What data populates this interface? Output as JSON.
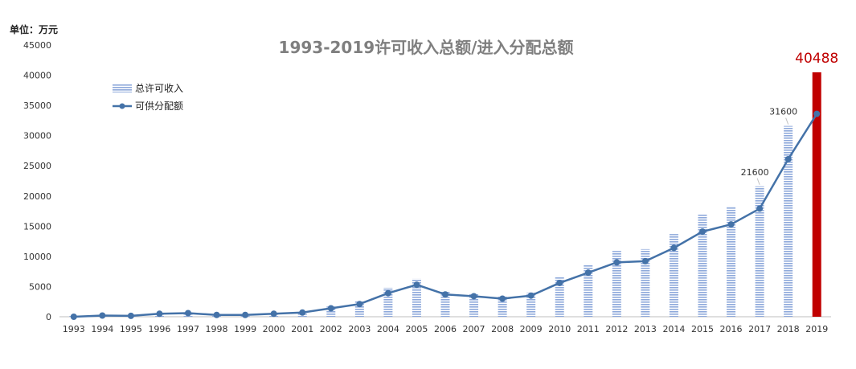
{
  "chart_data": {
    "type": "bar",
    "title": "1993-2019许可收入总额/进入分配总额",
    "unit_label": "单位：万元",
    "xlabel": "",
    "ylabel": "",
    "ylim": [
      0,
      45000
    ],
    "yticks": [
      0,
      5000,
      10000,
      15000,
      20000,
      25000,
      30000,
      35000,
      40000,
      45000
    ],
    "grid": false,
    "legend_position": "top-left",
    "categories": [
      "1993",
      "1994",
      "1995",
      "1996",
      "1997",
      "1998",
      "1999",
      "2000",
      "2001",
      "2002",
      "2003",
      "2004",
      "2005",
      "2006",
      "2007",
      "2008",
      "2009",
      "2010",
      "2011",
      "2012",
      "2013",
      "2014",
      "2015",
      "2016",
      "2017",
      "2018",
      "2019"
    ],
    "series": [
      {
        "name": "总许可收入",
        "kind": "bar",
        "color": "#8EA9DB",
        "values": [
          150,
          300,
          250,
          600,
          700,
          400,
          400,
          600,
          800,
          1700,
          2600,
          4800,
          6300,
          4300,
          3900,
          3400,
          4000,
          6700,
          8700,
          10900,
          11200,
          13700,
          17000,
          18300,
          21600,
          31600,
          40488
        ],
        "highlight": {
          "index": 26,
          "color": "#C00000"
        }
      },
      {
        "name": "可供分配额",
        "kind": "line",
        "color": "#4472A8",
        "values": [
          0,
          200,
          150,
          500,
          600,
          300,
          300,
          500,
          700,
          1400,
          2100,
          3900,
          5300,
          3700,
          3400,
          3000,
          3500,
          5600,
          7300,
          9000,
          9200,
          11400,
          14100,
          15300,
          17900,
          26100,
          33600
        ]
      }
    ],
    "annotations": [
      {
        "category": "2017",
        "text": "21600",
        "color": "#333333"
      },
      {
        "category": "2018",
        "text": "31600",
        "color": "#333333"
      },
      {
        "category": "2019",
        "text": "40488",
        "color": "#C00000"
      }
    ]
  }
}
